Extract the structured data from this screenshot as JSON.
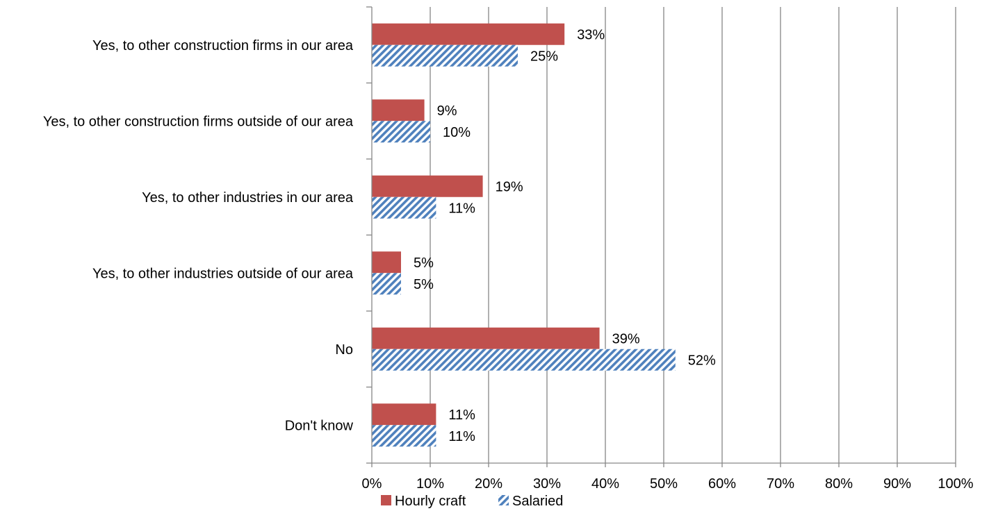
{
  "chart_data": {
    "type": "bar",
    "orientation": "horizontal",
    "categories": [
      "Yes, to other construction firms in our area",
      "Yes, to other construction firms outside of our area",
      "Yes, to other industries in our area",
      "Yes, to other industries outside of our area",
      "No",
      "Don't know"
    ],
    "series": [
      {
        "name": "Hourly craft",
        "values": [
          33,
          9,
          19,
          5,
          39,
          11
        ],
        "labels": [
          "33%",
          "9%",
          "19%",
          "5%",
          "39%",
          "11%"
        ],
        "color": "#c0504d",
        "fill": "solid"
      },
      {
        "name": "Salaried",
        "values": [
          25,
          10,
          11,
          5,
          52,
          11
        ],
        "labels": [
          "25%",
          "10%",
          "11%",
          "5%",
          "52%",
          "11%"
        ],
        "color": "#4f81bd",
        "fill": "diagonal-hatch"
      }
    ],
    "xlim": [
      0,
      100
    ],
    "xticks": [
      "0%",
      "10%",
      "20%",
      "30%",
      "40%",
      "50%",
      "60%",
      "70%",
      "80%",
      "90%",
      "100%"
    ],
    "grid": "vertical",
    "gridline_color": "#868686",
    "legend": "bottom"
  }
}
